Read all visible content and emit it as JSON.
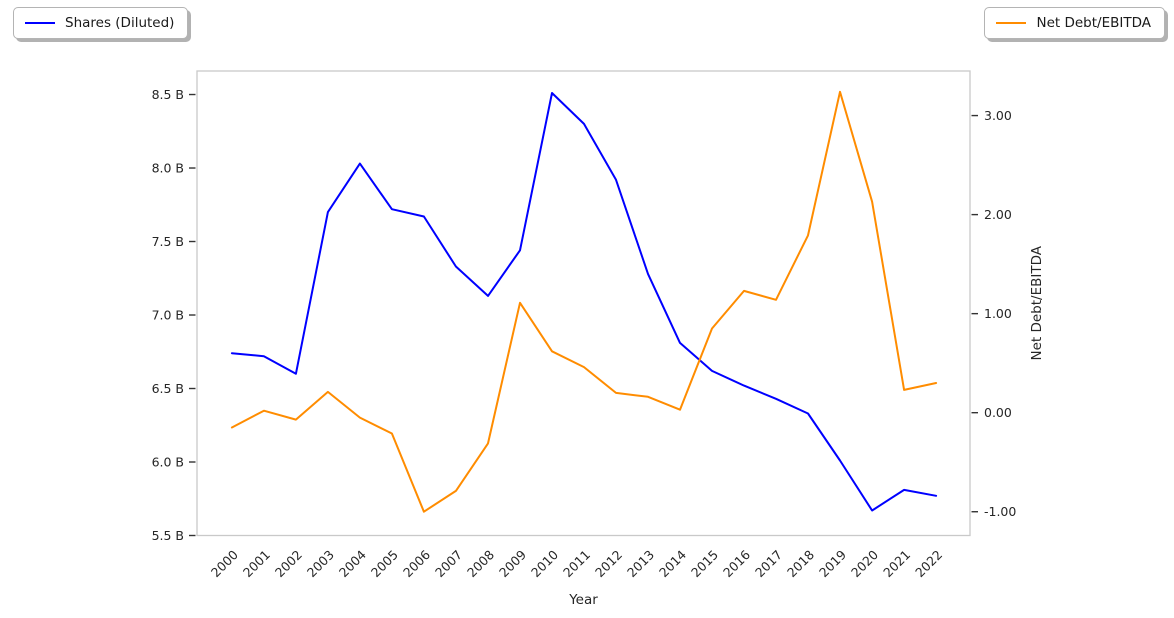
{
  "chart_data": {
    "type": "line",
    "title": "",
    "xlabel": "Year",
    "grid": false,
    "x": [
      2000,
      2001,
      2002,
      2003,
      2004,
      2005,
      2006,
      2007,
      2008,
      2009,
      2010,
      2011,
      2012,
      2013,
      2014,
      2015,
      2016,
      2017,
      2018,
      2019,
      2020,
      2021,
      2022
    ],
    "x_axis": {
      "label": "Year",
      "tick_labels": [
        "2000",
        "2001",
        "2002",
        "2003",
        "2004",
        "2005",
        "2006",
        "2007",
        "2008",
        "2009",
        "2010",
        "2011",
        "2012",
        "2013",
        "2014",
        "2015",
        "2016",
        "2017",
        "2018",
        "2019",
        "2020",
        "2021",
        "2022"
      ],
      "range": [
        1998.91,
        2023.06
      ]
    },
    "left_axis": {
      "label": "",
      "tick_labels": [
        "5.5 B",
        "6.0 B",
        "6.5 B",
        "7.0 B",
        "7.5 B",
        "8.0 B",
        "8.5 B"
      ],
      "tick_values": [
        5.5,
        6.0,
        6.5,
        7.0,
        7.5,
        8.0,
        8.5
      ],
      "range": [
        5.5,
        8.66
      ],
      "unit": "B"
    },
    "right_axis": {
      "label": "Net Debt/EBITDA",
      "tick_labels": [
        "-1.00",
        "0.00",
        "1.00",
        "2.00",
        "3.00"
      ],
      "tick_values": [
        -1.0,
        0.0,
        1.0,
        2.0,
        3.0
      ],
      "range": [
        -1.24,
        3.45
      ]
    },
    "series": [
      {
        "name": "Shares (Diluted)",
        "axis": "left",
        "color": "#0000ff",
        "values": [
          6.74,
          6.72,
          6.6,
          7.7,
          8.03,
          7.72,
          7.67,
          7.33,
          7.13,
          7.44,
          8.51,
          8.3,
          7.92,
          7.28,
          6.81,
          6.62,
          6.52,
          6.43,
          6.33,
          6.01,
          5.67,
          5.81,
          5.77
        ]
      },
      {
        "name": "Net Debt/EBITDA",
        "axis": "right",
        "color": "#ff8c00",
        "values": [
          -0.15,
          0.02,
          -0.07,
          0.21,
          -0.05,
          -0.21,
          -1.0,
          -0.79,
          -0.31,
          1.11,
          0.62,
          0.46,
          0.2,
          0.16,
          0.03,
          0.85,
          1.23,
          1.14,
          1.79,
          3.24,
          2.13,
          0.23,
          0.3
        ]
      }
    ],
    "legend": [
      {
        "label": "Shares (Diluted)",
        "color": "#0000ff",
        "position": "upper-left"
      },
      {
        "label": "Net Debt/EBITDA",
        "color": "#ff8c00",
        "position": "upper-right"
      }
    ]
  },
  "style": {
    "spine_color": "#c9c9c9",
    "tick_color": "#333333",
    "text_color": "#262626"
  }
}
